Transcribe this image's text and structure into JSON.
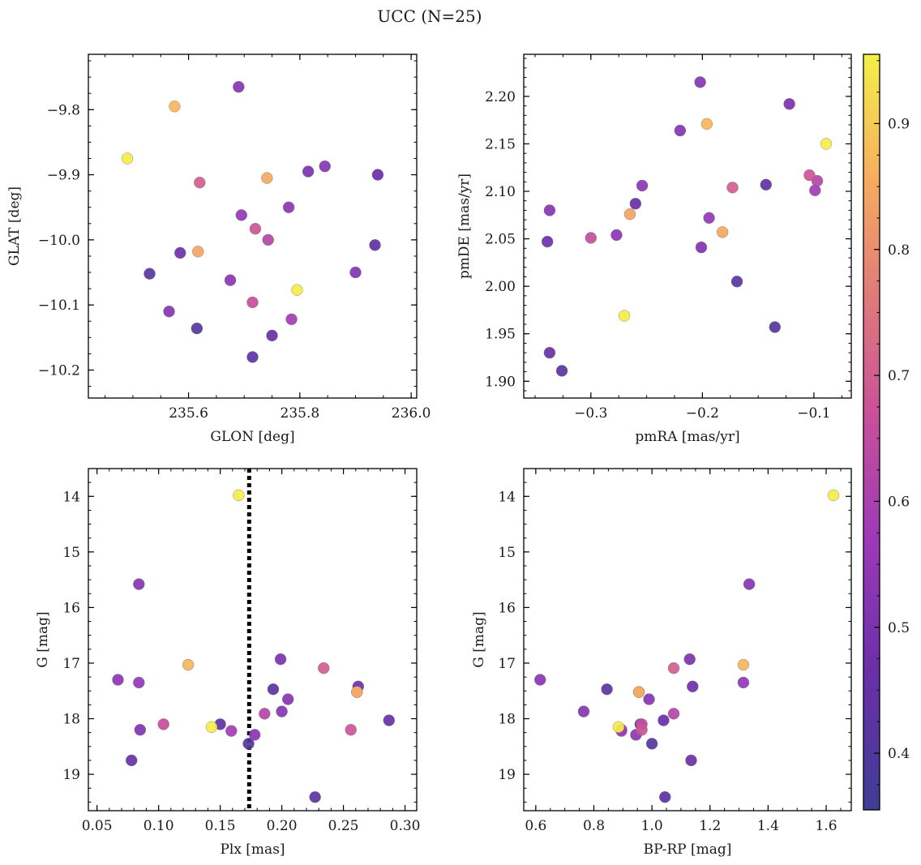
{
  "figure": {
    "title": "UCC (N=25)"
  },
  "colorbar": {
    "range": [
      0.355,
      0.955
    ],
    "ticks": [
      0.4,
      0.5,
      0.6,
      0.7,
      0.8,
      0.9
    ],
    "colormap": "plasma"
  },
  "points": [
    {
      "glon": 235.69,
      "glat": -9.765,
      "pmra": -0.202,
      "pmde": 2.215,
      "plx": 0.084,
      "g": 15.58,
      "bprp": 1.335,
      "p": 0.52
    },
    {
      "glon": 235.575,
      "glat": -9.795,
      "pmra": -0.196,
      "pmde": 2.171,
      "plx": 0.124,
      "g": 17.03,
      "bprp": 1.315,
      "p": 0.87
    },
    {
      "glon": 235.49,
      "glat": -9.875,
      "pmra": -0.089,
      "pmde": 2.15,
      "plx": 0.165,
      "g": 13.98,
      "bprp": 1.625,
      "p": 0.95
    },
    {
      "glon": 235.62,
      "glat": -9.912,
      "pmra": -0.173,
      "pmde": 2.104,
      "plx": 0.234,
      "g": 17.09,
      "bprp": 1.075,
      "p": 0.7
    },
    {
      "glon": 235.741,
      "glat": -9.905,
      "pmra": -0.182,
      "pmde": 2.057,
      "plx": 0.261,
      "g": 17.52,
      "bprp": 0.955,
      "p": 0.85
    },
    {
      "glon": 235.815,
      "glat": -9.895,
      "pmra": -0.122,
      "pmde": 2.192,
      "plx": 0.199,
      "g": 16.93,
      "bprp": 1.13,
      "p": 0.5
    },
    {
      "glon": 235.845,
      "glat": -9.887,
      "pmra": -0.22,
      "pmde": 2.164,
      "plx": 0.205,
      "g": 17.65,
      "bprp": 0.99,
      "p": 0.52
    },
    {
      "glon": 235.94,
      "glat": -9.9,
      "pmra": -0.26,
      "pmde": 2.087,
      "plx": 0.078,
      "g": 18.75,
      "bprp": 1.135,
      "p": 0.46
    },
    {
      "glon": 235.695,
      "glat": -9.962,
      "pmra": -0.194,
      "pmde": 2.072,
      "plx": 0.084,
      "g": 17.35,
      "bprp": 1.315,
      "p": 0.55
    },
    {
      "glon": 235.78,
      "glat": -9.95,
      "pmra": -0.254,
      "pmde": 2.106,
      "plx": 0.067,
      "g": 17.3,
      "bprp": 0.615,
      "p": 0.53
    },
    {
      "glon": 235.72,
      "glat": -9.983,
      "pmra": -0.104,
      "pmde": 2.117,
      "plx": 0.256,
      "g": 18.2,
      "bprp": 0.965,
      "p": 0.68
    },
    {
      "glon": 235.743,
      "glat": -10.0,
      "pmra": -0.097,
      "pmde": 2.111,
      "plx": 0.186,
      "g": 17.91,
      "bprp": 1.075,
      "p": 0.62
    },
    {
      "glon": 235.617,
      "glat": -10.018,
      "pmra": -0.265,
      "pmde": 2.076,
      "plx": 0.261,
      "g": 17.52,
      "bprp": 0.955,
      "p": 0.84
    },
    {
      "glon": 235.585,
      "glat": -10.02,
      "pmra": -0.339,
      "pmde": 2.047,
      "plx": 0.262,
      "g": 17.42,
      "bprp": 1.14,
      "p": 0.47
    },
    {
      "glon": 235.935,
      "glat": -10.008,
      "pmra": -0.143,
      "pmde": 2.107,
      "plx": 0.15,
      "g": 18.1,
      "bprp": 0.96,
      "p": 0.43
    },
    {
      "glon": 235.53,
      "glat": -10.052,
      "pmra": -0.169,
      "pmde": 2.005,
      "plx": 0.193,
      "g": 17.47,
      "bprp": 0.845,
      "p": 0.42
    },
    {
      "glon": 235.9,
      "glat": -10.05,
      "pmra": -0.201,
      "pmde": 2.041,
      "plx": 0.085,
      "g": 18.2,
      "bprp": 0.895,
      "p": 0.51
    },
    {
      "glon": 235.675,
      "glat": -10.062,
      "pmra": -0.277,
      "pmde": 2.054,
      "plx": 0.178,
      "g": 18.29,
      "bprp": 0.945,
      "p": 0.53
    },
    {
      "glon": 235.795,
      "glat": -10.077,
      "pmra": -0.27,
      "pmde": 1.969,
      "plx": 0.143,
      "g": 18.15,
      "bprp": 0.885,
      "p": 0.95
    },
    {
      "glon": 235.715,
      "glat": -10.096,
      "pmra": -0.3,
      "pmde": 2.051,
      "plx": 0.104,
      "g": 18.1,
      "bprp": 0.965,
      "p": 0.66
    },
    {
      "glon": 235.565,
      "glat": -10.11,
      "pmra": -0.337,
      "pmde": 2.08,
      "plx": 0.2,
      "g": 17.87,
      "bprp": 0.765,
      "p": 0.52
    },
    {
      "glon": 235.785,
      "glat": -10.122,
      "pmra": -0.099,
      "pmde": 2.101,
      "plx": 0.159,
      "g": 18.22,
      "bprp": 0.895,
      "p": 0.58
    },
    {
      "glon": 235.615,
      "glat": -10.136,
      "pmra": -0.135,
      "pmde": 1.957,
      "plx": 0.173,
      "g": 18.45,
      "bprp": 1.0,
      "p": 0.41
    },
    {
      "glon": 235.75,
      "glat": -10.147,
      "pmra": -0.337,
      "pmde": 1.93,
      "plx": 0.287,
      "g": 18.03,
      "bprp": 1.04,
      "p": 0.46
    },
    {
      "glon": 235.715,
      "glat": -10.18,
      "pmra": -0.326,
      "pmde": 1.911,
      "plx": 0.227,
      "g": 19.41,
      "bprp": 1.045,
      "p": 0.43
    }
  ],
  "chart_data": [
    {
      "type": "scatter",
      "xlabel": "GLON [deg]",
      "ylabel": "GLAT [deg]",
      "xkey": "glon",
      "ykey": "glat",
      "xlim": [
        235.42,
        236.01
      ],
      "ylim": [
        -10.243,
        -9.715
      ],
      "xticks": [
        235.6,
        235.8,
        236.0
      ],
      "xtick_labels": [
        "235.6",
        "235.8",
        "236.0"
      ],
      "yticks": [
        -9.8,
        -9.9,
        -10.0,
        -10.1,
        -10.2
      ],
      "ytick_labels": [
        "−9.8",
        "−9.9",
        "−10.0",
        "−10.1",
        "−10.2"
      ],
      "xminor": 0.05,
      "yminor": 0.025,
      "inverted_y": false
    },
    {
      "type": "scatter",
      "xlabel": "pmRA [mas/yr]",
      "ylabel": "pmDE [mas/yr]",
      "xkey": "pmra",
      "ykey": "pmde",
      "xlim": [
        -0.3602,
        -0.0665
      ],
      "ylim": [
        1.8823,
        2.2443
      ],
      "xticks": [
        -0.3,
        -0.2,
        -0.1
      ],
      "xtick_labels": [
        "−0.3",
        "−0.2",
        "−0.1"
      ],
      "yticks": [
        1.9,
        1.95,
        2.0,
        2.05,
        2.1,
        2.15,
        2.2
      ],
      "ytick_labels": [
        "1.90",
        "1.95",
        "2.00",
        "2.05",
        "2.10",
        "2.15",
        "2.20"
      ],
      "xminor": 0.025,
      "yminor": 0.01,
      "inverted_y": false
    },
    {
      "type": "scatter",
      "xlabel": "Plx [mas]",
      "ylabel": "G [mag]",
      "xkey": "plx",
      "ykey": "g",
      "xlim": [
        0.043,
        0.3095
      ],
      "ylim": [
        19.655,
        13.5
      ],
      "xticks": [
        0.05,
        0.1,
        0.15,
        0.2,
        0.25,
        0.3
      ],
      "xtick_labels": [
        "0.05",
        "0.10",
        "0.15",
        "0.20",
        "0.25",
        "0.30"
      ],
      "yticks": [
        14,
        15,
        16,
        17,
        18,
        19
      ],
      "ytick_labels": [
        "14",
        "15",
        "16",
        "17",
        "18",
        "19"
      ],
      "xminor": 0.01,
      "yminor": 0.25,
      "inverted_y": true,
      "vline": 0.1735
    },
    {
      "type": "scatter",
      "xlabel": "BP-RP [mag]",
      "ylabel": "G [mag]",
      "xkey": "bprp",
      "ykey": "g",
      "xlim": [
        0.5585,
        1.6865
      ],
      "ylim": [
        19.655,
        13.5
      ],
      "xticks": [
        0.6,
        0.8,
        1.0,
        1.2,
        1.4,
        1.6
      ],
      "xtick_labels": [
        "0.6",
        "0.8",
        "1.0",
        "1.2",
        "1.4",
        "1.6"
      ],
      "yticks": [
        14,
        15,
        16,
        17,
        18,
        19
      ],
      "ytick_labels": [
        "14",
        "15",
        "16",
        "17",
        "18",
        "19"
      ],
      "xminor": 0.05,
      "yminor": 0.25,
      "inverted_y": true
    }
  ]
}
